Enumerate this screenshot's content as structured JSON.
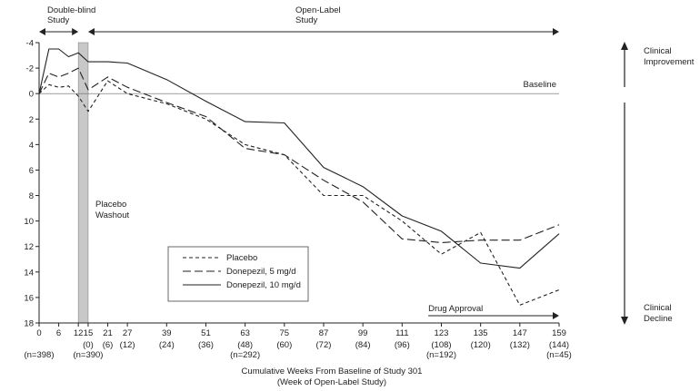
{
  "chart_data": {
    "type": "line",
    "title": "",
    "xlabel": "Cumulative Weeks From Baseline of Study 301",
    "xlabel_sub": "(Week of Open-Label Study)",
    "ylabel": "",
    "xlim": [
      0,
      159
    ],
    "ylim": [
      -4,
      18
    ],
    "y_inverted": true,
    "yticks": [
      -4,
      -2,
      0,
      2,
      4,
      6,
      8,
      10,
      12,
      14,
      16,
      18
    ],
    "yticks_labels": [
      "-4",
      "-2",
      "0",
      "2",
      "4",
      "6",
      "8",
      "10",
      "12",
      "14",
      "16",
      "18"
    ],
    "xticks": [
      0,
      6,
      12,
      15,
      21,
      27,
      39,
      51,
      63,
      75,
      87,
      99,
      111,
      123,
      135,
      147,
      159
    ],
    "xticks_labels": [
      "0",
      "6",
      "12",
      "15",
      "21",
      "27",
      "39",
      "51",
      "63",
      "75",
      "87",
      "99",
      "111",
      "123",
      "135",
      "147",
      "159"
    ],
    "xticks_sub": [
      {
        "x": 15,
        "label": "(0)"
      },
      {
        "x": 21,
        "label": "(6)"
      },
      {
        "x": 27,
        "label": "(12)"
      },
      {
        "x": 39,
        "label": "(24)"
      },
      {
        "x": 51,
        "label": "(36)"
      },
      {
        "x": 63,
        "label": "(48)"
      },
      {
        "x": 75,
        "label": "(60)"
      },
      {
        "x": 87,
        "label": "(72)"
      },
      {
        "x": 99,
        "label": "(84)"
      },
      {
        "x": 111,
        "label": "(96)"
      },
      {
        "x": 123,
        "label": "(108)"
      },
      {
        "x": 135,
        "label": "(120)"
      },
      {
        "x": 147,
        "label": "(132)"
      },
      {
        "x": 159,
        "label": "(144)"
      }
    ],
    "n_labels": [
      {
        "x": 0,
        "label": "(n=398)"
      },
      {
        "x": 15,
        "label": "(n=390)"
      },
      {
        "x": 63,
        "label": "(n=292)"
      },
      {
        "x": 123,
        "label": "(n=192)"
      },
      {
        "x": 159,
        "label": "(n=45)"
      }
    ],
    "series": [
      {
        "name": "Placebo",
        "style": "short-dash",
        "x": [
          0,
          3,
          6,
          9,
          12,
          15,
          21,
          27,
          39,
          51,
          63,
          75,
          87,
          99,
          111,
          123,
          135,
          147,
          159
        ],
        "y": [
          0,
          -0.7,
          -0.5,
          -0.6,
          0.2,
          1.4,
          -1.0,
          0.0,
          0.8,
          2.0,
          4.0,
          4.8,
          8.0,
          8.0,
          10.0,
          12.6,
          10.9,
          16.6,
          15.4
        ]
      },
      {
        "name": "Donepezil, 5 mg/d",
        "style": "long-dash",
        "x": [
          0,
          3,
          6,
          9,
          12,
          15,
          21,
          27,
          39,
          51,
          63,
          75,
          87,
          99,
          111,
          123,
          135,
          147,
          159
        ],
        "y": [
          0,
          -1.6,
          -1.3,
          -1.6,
          -2.0,
          -0.3,
          -1.3,
          -0.5,
          0.7,
          1.8,
          4.3,
          4.8,
          6.8,
          8.5,
          11.4,
          11.7,
          11.5,
          11.5,
          10.3
        ]
      },
      {
        "name": "Donepezil, 10 mg/d",
        "style": "solid",
        "x": [
          0,
          3,
          6,
          9,
          12,
          15,
          21,
          27,
          39,
          51,
          63,
          75,
          87,
          99,
          111,
          123,
          135,
          147,
          159
        ],
        "y": [
          0,
          -3.5,
          -3.5,
          -2.9,
          -3.2,
          -2.5,
          -2.5,
          -2.4,
          -1.1,
          0.6,
          2.2,
          2.3,
          5.8,
          7.3,
          9.6,
          10.8,
          13.3,
          13.7,
          11.0
        ]
      }
    ],
    "legend_position": "bottom-center",
    "grid": false,
    "annotations": {
      "baseline": "Baseline",
      "double_blind": [
        "Double-blind",
        "Study"
      ],
      "open_label": [
        "Open-Label",
        "Study"
      ],
      "washout": [
        "Placebo",
        "Washout"
      ],
      "drug_approval": "Drug Approval",
      "clinical_improvement": [
        "Clinical",
        "Improvement"
      ],
      "clinical_decline": [
        "Clinical",
        "Decline"
      ]
    },
    "washout_range": [
      12,
      15
    ],
    "drug_approval_range": [
      119,
      159
    ]
  }
}
